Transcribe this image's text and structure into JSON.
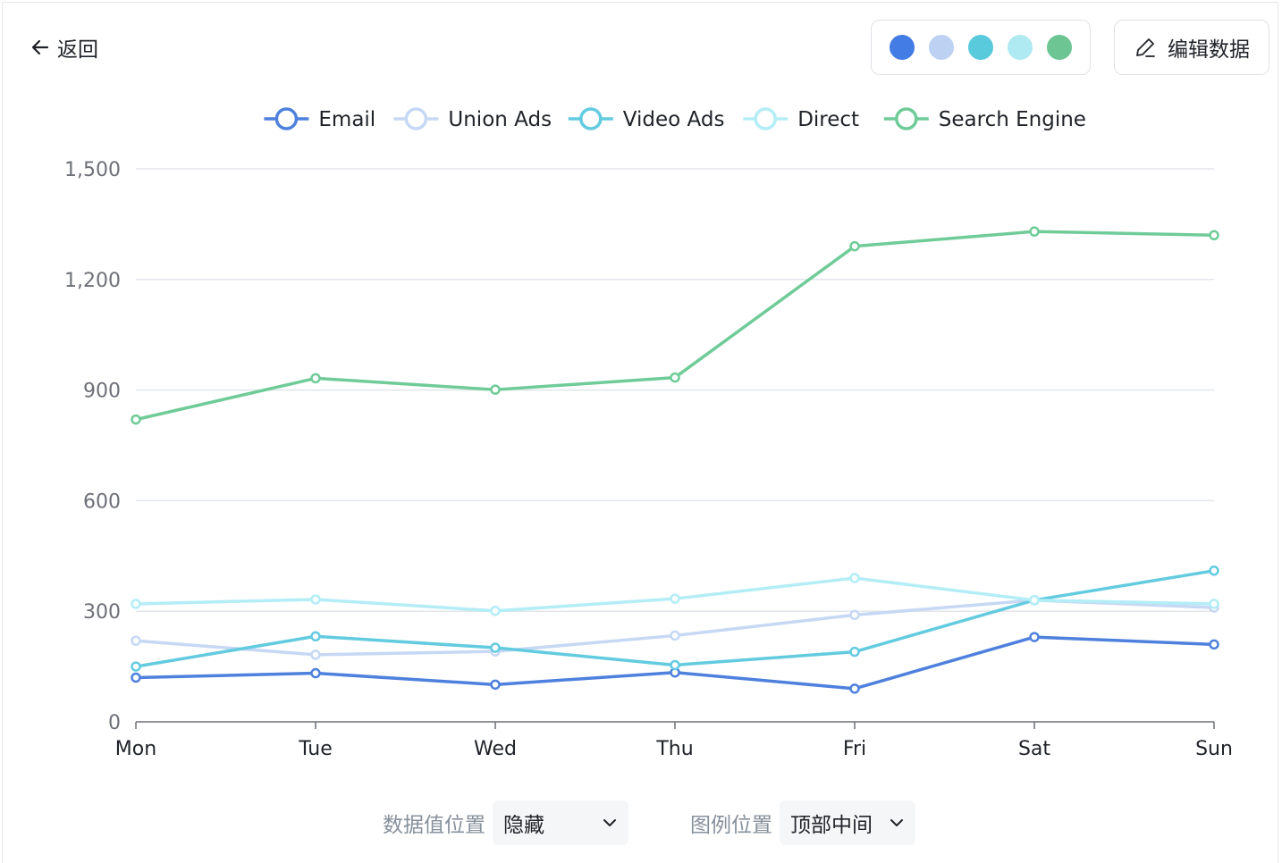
{
  "header": {
    "back_label": "返回",
    "edit_label": "编辑数据",
    "palette": [
      "#4680ec",
      "#c3d7fb",
      "#5ccfe3",
      "#b4f0f8",
      "#6fcb98"
    ]
  },
  "controls": {
    "data_label_position_label": "数据值位置",
    "data_label_position_value": "隐藏",
    "legend_position_label": "图例位置",
    "legend_position_value": "顶部中间"
  },
  "chart_data": {
    "type": "line",
    "categories": [
      "Mon",
      "Tue",
      "Wed",
      "Thu",
      "Fri",
      "Sat",
      "Sun"
    ],
    "ylim": [
      0,
      1500
    ],
    "yticks": [
      0,
      300,
      600,
      900,
      1200,
      1500
    ],
    "ytick_labels": [
      "0",
      "300",
      "600",
      "900",
      "1,200",
      "1,500"
    ],
    "grid": true,
    "legend_position": "top-center",
    "series": [
      {
        "name": "Email",
        "color": "#4e80dd",
        "values": [
          120,
          132,
          101,
          134,
          90,
          230,
          210
        ]
      },
      {
        "name": "Union Ads",
        "color": "#c6d8f4",
        "values": [
          220,
          182,
          191,
          234,
          290,
          330,
          310
        ]
      },
      {
        "name": "Video Ads",
        "color": "#63cbe0",
        "values": [
          150,
          232,
          201,
          154,
          190,
          330,
          410
        ]
      },
      {
        "name": "Direct",
        "color": "#b3edf6",
        "values": [
          320,
          332,
          301,
          334,
          390,
          330,
          320
        ]
      },
      {
        "name": "Search Engine",
        "color": "#6fcb98",
        "values": [
          820,
          932,
          901,
          934,
          1290,
          1330,
          1320
        ]
      }
    ]
  }
}
